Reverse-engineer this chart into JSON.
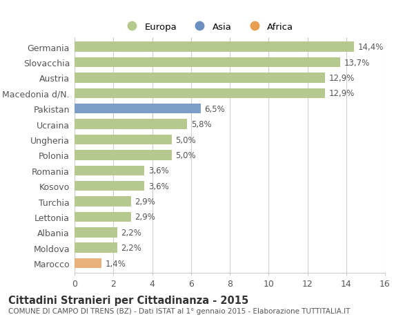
{
  "countries": [
    "Germania",
    "Slovacchia",
    "Austria",
    "Macedonia d/N.",
    "Pakistan",
    "Ucraina",
    "Ungheria",
    "Polonia",
    "Romania",
    "Kosovo",
    "Turchia",
    "Lettonia",
    "Albania",
    "Moldova",
    "Marocco"
  ],
  "values": [
    14.4,
    13.7,
    12.9,
    12.9,
    6.5,
    5.8,
    5.0,
    5.0,
    3.6,
    3.6,
    2.9,
    2.9,
    2.2,
    2.2,
    1.4
  ],
  "labels": [
    "14,4%",
    "13,7%",
    "12,9%",
    "12,9%",
    "6,5%",
    "5,8%",
    "5,0%",
    "5,0%",
    "3,6%",
    "3,6%",
    "2,9%",
    "2,9%",
    "2,2%",
    "2,2%",
    "1,4%"
  ],
  "continents": [
    "Europa",
    "Europa",
    "Europa",
    "Europa",
    "Asia",
    "Europa",
    "Europa",
    "Europa",
    "Europa",
    "Europa",
    "Europa",
    "Europa",
    "Europa",
    "Europa",
    "Africa"
  ],
  "colors": {
    "Europa": "#b5c98e",
    "Asia": "#7c9dc7",
    "Africa": "#e8b07a"
  },
  "legend_colors": {
    "Europa": "#b5c98e",
    "Asia": "#6b8fbe",
    "Africa": "#e8a050"
  },
  "xlim": [
    0,
    16
  ],
  "xticks": [
    0,
    2,
    4,
    6,
    8,
    10,
    12,
    14,
    16
  ],
  "title": "Cittadini Stranieri per Cittadinanza - 2015",
  "subtitle": "COMUNE DI CAMPO DI TRENS (BZ) - Dati ISTAT al 1° gennaio 2015 - Elaborazione TUTTITALIA.IT",
  "background_color": "#ffffff",
  "bar_height": 0.65,
  "grid_color": "#cccccc",
  "text_color": "#555555",
  "label_color": "#555555"
}
